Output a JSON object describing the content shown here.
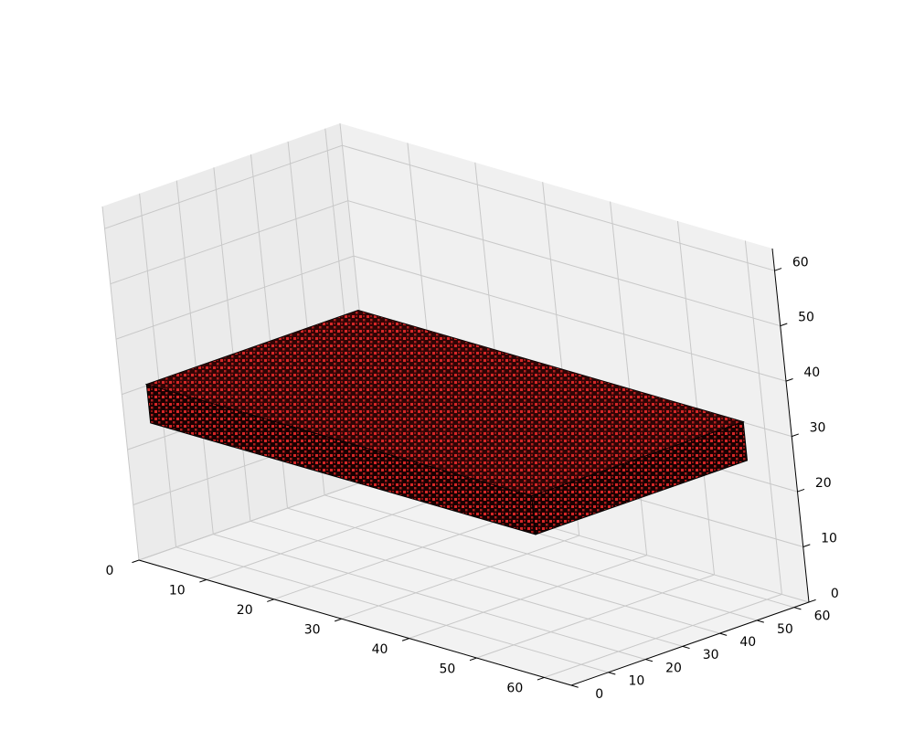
{
  "chart_data": {
    "type": "voxel-3d",
    "title": "",
    "xlabel": "",
    "ylabel": "",
    "zlabel": "",
    "grid": true,
    "xlim": [
      0,
      64
    ],
    "ylim": [
      0,
      64
    ],
    "zlim": [
      0,
      64
    ],
    "xticks": [
      0,
      10,
      20,
      30,
      40,
      50,
      60
    ],
    "yticks": [
      0,
      10,
      20,
      30,
      40,
      50,
      60
    ],
    "zticks": [
      0,
      10,
      20,
      30,
      40,
      50,
      60
    ],
    "xtick_labels": [
      "0",
      "10",
      "20",
      "30",
      "40",
      "50",
      "60"
    ],
    "ytick_labels": [
      "0",
      "10",
      "20",
      "30",
      "40",
      "50",
      "60"
    ],
    "ztick_labels": [
      "0",
      "10",
      "20",
      "30",
      "40",
      "50",
      "60"
    ],
    "object": {
      "description": "flat rectangular slab of red voxels with black edges",
      "x_range": [
        1,
        58
      ],
      "y_range": [
        5,
        62
      ],
      "z_range": [
        24,
        31
      ]
    },
    "colors": {
      "voxel_face": "#d62728",
      "voxel_edge": "#000000",
      "pane_left": "#ebebeb",
      "pane_back": "#f0f0f0",
      "pane_floor": "#f2f2f2",
      "grid": "#c8c8c8"
    }
  }
}
